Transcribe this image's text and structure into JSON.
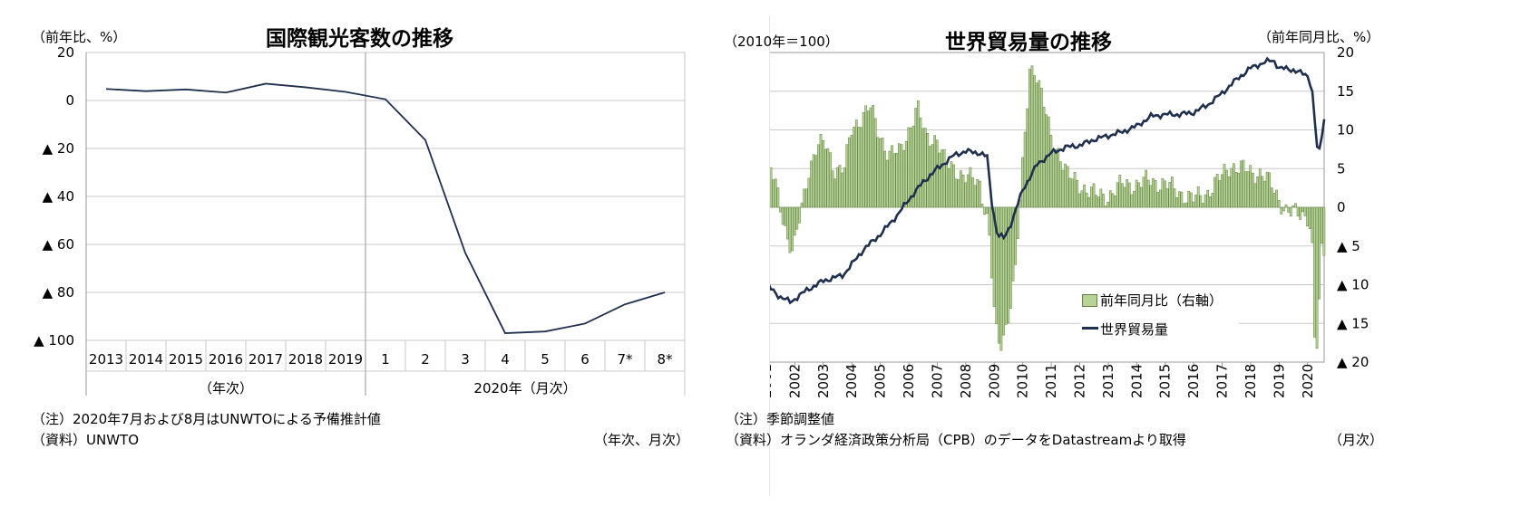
{
  "chart_data": [
    {
      "type": "line",
      "title": "国際観光客数の推移",
      "ylabel": "（前年比、%）",
      "ylim": [
        -100,
        20
      ],
      "y_ticks": [
        {
          "value": 20,
          "label": "20"
        },
        {
          "value": 0,
          "label": "0"
        },
        {
          "value": -20,
          "label": "▲ 20"
        },
        {
          "value": -40,
          "label": "▲ 40"
        },
        {
          "value": -60,
          "label": "▲ 60"
        },
        {
          "value": -80,
          "label": "▲ 80"
        },
        {
          "value": -100,
          "label": "▲ 100"
        }
      ],
      "categories": [
        "2013",
        "2014",
        "2015",
        "2016",
        "2017",
        "2018",
        "2019",
        "1",
        "2",
        "3",
        "4",
        "5",
        "6",
        "7*",
        "8*"
      ],
      "x_groups": [
        {
          "label": "（年次）",
          "from": 0,
          "to": 6
        },
        {
          "label": "2020年（月次）",
          "from": 7,
          "to": 14
        }
      ],
      "series": [
        {
          "values": [
            4.8,
            3.9,
            4.6,
            3.3,
            7.0,
            5.5,
            3.6,
            0.5,
            -16.5,
            -63.5,
            -97.0,
            -96.3,
            -93.0,
            -85.0,
            -80.0
          ]
        }
      ],
      "grid": true,
      "line_color": "#1f2f4e"
    },
    {
      "type": "bar+line",
      "title": "世界貿易量の推移",
      "left_axis_label": "（2010年＝100）",
      "right_axis_label": "（前年同月比、%）",
      "ylim_left": [
        50,
        130
      ],
      "ylim_right": [
        -20,
        20
      ],
      "left_ticks": [
        "50",
        "60",
        "70",
        "80",
        "90",
        "100",
        "110",
        "120",
        "130"
      ],
      "right_ticks": [
        {
          "value": 20,
          "label": "20"
        },
        {
          "value": 15,
          "label": "15"
        },
        {
          "value": 10,
          "label": "10"
        },
        {
          "value": 5,
          "label": "5"
        },
        {
          "value": 0,
          "label": "0"
        },
        {
          "value": -5,
          "label": "▲ 5"
        },
        {
          "value": -10,
          "label": "▲ 10"
        },
        {
          "value": -15,
          "label": "▲ 15"
        },
        {
          "value": -20,
          "label": "▲ 20"
        }
      ],
      "x_labels": [
        "2001",
        "2002",
        "2003",
        "2004",
        "2005",
        "2006",
        "2007",
        "2008",
        "2009",
        "2010",
        "2011",
        "2012",
        "2013",
        "2014",
        "2015",
        "2016",
        "2017",
        "2018",
        "2019",
        "2020"
      ],
      "legend": [
        {
          "name": "前年同月比（右軸）",
          "kind": "bar"
        },
        {
          "name": "世界貿易量",
          "kind": "line"
        }
      ],
      "bar_color": "#b7d39a",
      "line_color": "#1f2f4e",
      "volume_keypoints": [
        [
          2001.0,
          70
        ],
        [
          2001.45,
          67
        ],
        [
          2001.85,
          65.5
        ],
        [
          2002.4,
          68.5
        ],
        [
          2003.0,
          71
        ],
        [
          2003.7,
          72.5
        ],
        [
          2004.4,
          79
        ],
        [
          2005.0,
          83
        ],
        [
          2005.6,
          88
        ],
        [
          2006.0,
          92
        ],
        [
          2006.5,
          96.5
        ],
        [
          2007.0,
          100
        ],
        [
          2007.6,
          103.5
        ],
        [
          2008.0,
          104.5
        ],
        [
          2008.5,
          104
        ],
        [
          2008.75,
          103
        ],
        [
          2008.9,
          92
        ],
        [
          2009.1,
          83
        ],
        [
          2009.35,
          82
        ],
        [
          2009.6,
          86
        ],
        [
          2010.0,
          94.5
        ],
        [
          2010.5,
          101
        ],
        [
          2011.0,
          104
        ],
        [
          2011.5,
          105.5
        ],
        [
          2012.0,
          106
        ],
        [
          2012.5,
          107.5
        ],
        [
          2013.0,
          108.5
        ],
        [
          2013.5,
          109.5
        ],
        [
          2014.0,
          111
        ],
        [
          2014.5,
          113.5
        ],
        [
          2015.0,
          114
        ],
        [
          2015.5,
          114
        ],
        [
          2016.0,
          114.5
        ],
        [
          2016.5,
          116.5
        ],
        [
          2017.0,
          119.5
        ],
        [
          2017.5,
          123
        ],
        [
          2018.0,
          126
        ],
        [
          2018.5,
          127.5
        ],
        [
          2018.8,
          128
        ],
        [
          2019.0,
          126
        ],
        [
          2019.5,
          125.5
        ],
        [
          2020.0,
          124
        ],
        [
          2020.15,
          121
        ],
        [
          2020.33,
          105.5
        ],
        [
          2020.42,
          104.5
        ],
        [
          2020.58,
          113
        ]
      ],
      "yoy_keypoints": [
        [
          2001.0,
          9
        ],
        [
          2001.15,
          5
        ],
        [
          2001.4,
          2
        ],
        [
          2001.75,
          -4
        ],
        [
          2001.95,
          -6
        ],
        [
          2002.2,
          -1
        ],
        [
          2002.5,
          5
        ],
        [
          2002.8,
          8
        ],
        [
          2003.1,
          8
        ],
        [
          2003.4,
          5
        ],
        [
          2003.75,
          5
        ],
        [
          2004.0,
          10
        ],
        [
          2004.4,
          12
        ],
        [
          2004.65,
          13
        ],
        [
          2004.9,
          10
        ],
        [
          2005.3,
          7
        ],
        [
          2005.7,
          7
        ],
        [
          2006.0,
          10
        ],
        [
          2006.3,
          13
        ],
        [
          2006.6,
          9
        ],
        [
          2007.0,
          9
        ],
        [
          2007.3,
          5.5
        ],
        [
          2007.6,
          5
        ],
        [
          2008.0,
          4
        ],
        [
          2008.5,
          3
        ],
        [
          2008.8,
          -2
        ],
        [
          2009.05,
          -16
        ],
        [
          2009.2,
          -18.5
        ],
        [
          2009.45,
          -15
        ],
        [
          2009.75,
          -8
        ],
        [
          2010.0,
          5
        ],
        [
          2010.25,
          18
        ],
        [
          2010.45,
          18
        ],
        [
          2010.7,
          14
        ],
        [
          2011.0,
          9
        ],
        [
          2011.3,
          7
        ],
        [
          2011.6,
          4
        ],
        [
          2012.0,
          3
        ],
        [
          2012.6,
          1.5
        ],
        [
          2013.0,
          1.5
        ],
        [
          2013.5,
          3
        ],
        [
          2014.0,
          3
        ],
        [
          2014.5,
          3.5
        ],
        [
          2015.0,
          3
        ],
        [
          2015.5,
          2
        ],
        [
          2016.0,
          1
        ],
        [
          2016.5,
          2
        ],
        [
          2017.0,
          4
        ],
        [
          2017.3,
          5.5
        ],
        [
          2017.7,
          5
        ],
        [
          2018.0,
          4.5
        ],
        [
          2018.4,
          4.5
        ],
        [
          2018.7,
          3
        ],
        [
          2019.0,
          1
        ],
        [
          2019.3,
          -0.5
        ],
        [
          2019.7,
          -1
        ],
        [
          2020.0,
          -1
        ],
        [
          2020.15,
          -3
        ],
        [
          2020.25,
          -17
        ],
        [
          2020.35,
          -18
        ],
        [
          2020.5,
          -6
        ]
      ]
    }
  ],
  "left_panel": {
    "title": "国際観光客数の推移",
    "axis_label": "（前年比、%）",
    "note1": "（注）2020年7月および8月はUNWTOによる予備推計値",
    "source": "（資料）UNWTO",
    "unit_note": "（年次、月次）"
  },
  "right_panel": {
    "title": "世界貿易量の推移",
    "left_axis_label": "（2010年＝100）",
    "right_axis_label": "（前年同月比、%）",
    "note1": "（注）季節調整値",
    "source": "（資料）オランダ経済政策分析局（CPB）のデータをDatastreamより取得",
    "unit_note": "（月次）",
    "legend_bar": "前年同月比（右軸）",
    "legend_line": "世界貿易量"
  }
}
